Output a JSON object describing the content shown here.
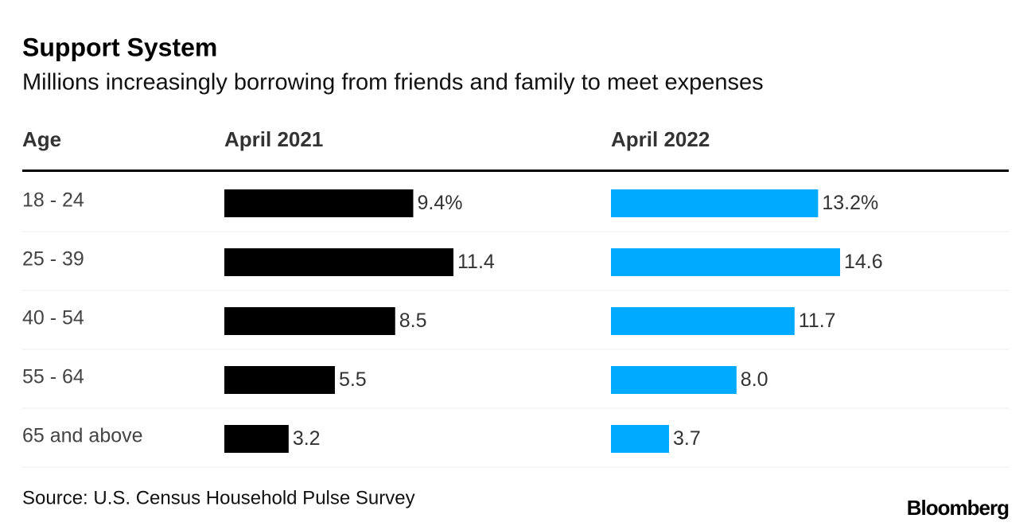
{
  "chart_data": {
    "type": "bar",
    "title": "Support System",
    "subtitle": "Millions increasingly borrowing from friends and family to meet expenses",
    "category_label": "Age",
    "categories": [
      "18 - 24",
      "25 - 39",
      "40 - 54",
      "55 - 64",
      "65 and above"
    ],
    "series": [
      {
        "name": "April 2021",
        "color": "#000000",
        "values": [
          9.4,
          11.4,
          8.5,
          5.5,
          3.2
        ],
        "value_labels": [
          "9.4%",
          "11.4",
          "8.5",
          "5.5",
          "3.2"
        ]
      },
      {
        "name": "April 2022",
        "color": "#00aaff",
        "values": [
          13.2,
          14.6,
          11.7,
          8.0,
          3.7
        ],
        "value_labels": [
          "13.2%",
          "14.6",
          "11.7",
          "8.0",
          "3.7"
        ]
      }
    ],
    "source": "Source: U.S. Census Household Pulse Survey",
    "credit": "Bloomberg"
  }
}
